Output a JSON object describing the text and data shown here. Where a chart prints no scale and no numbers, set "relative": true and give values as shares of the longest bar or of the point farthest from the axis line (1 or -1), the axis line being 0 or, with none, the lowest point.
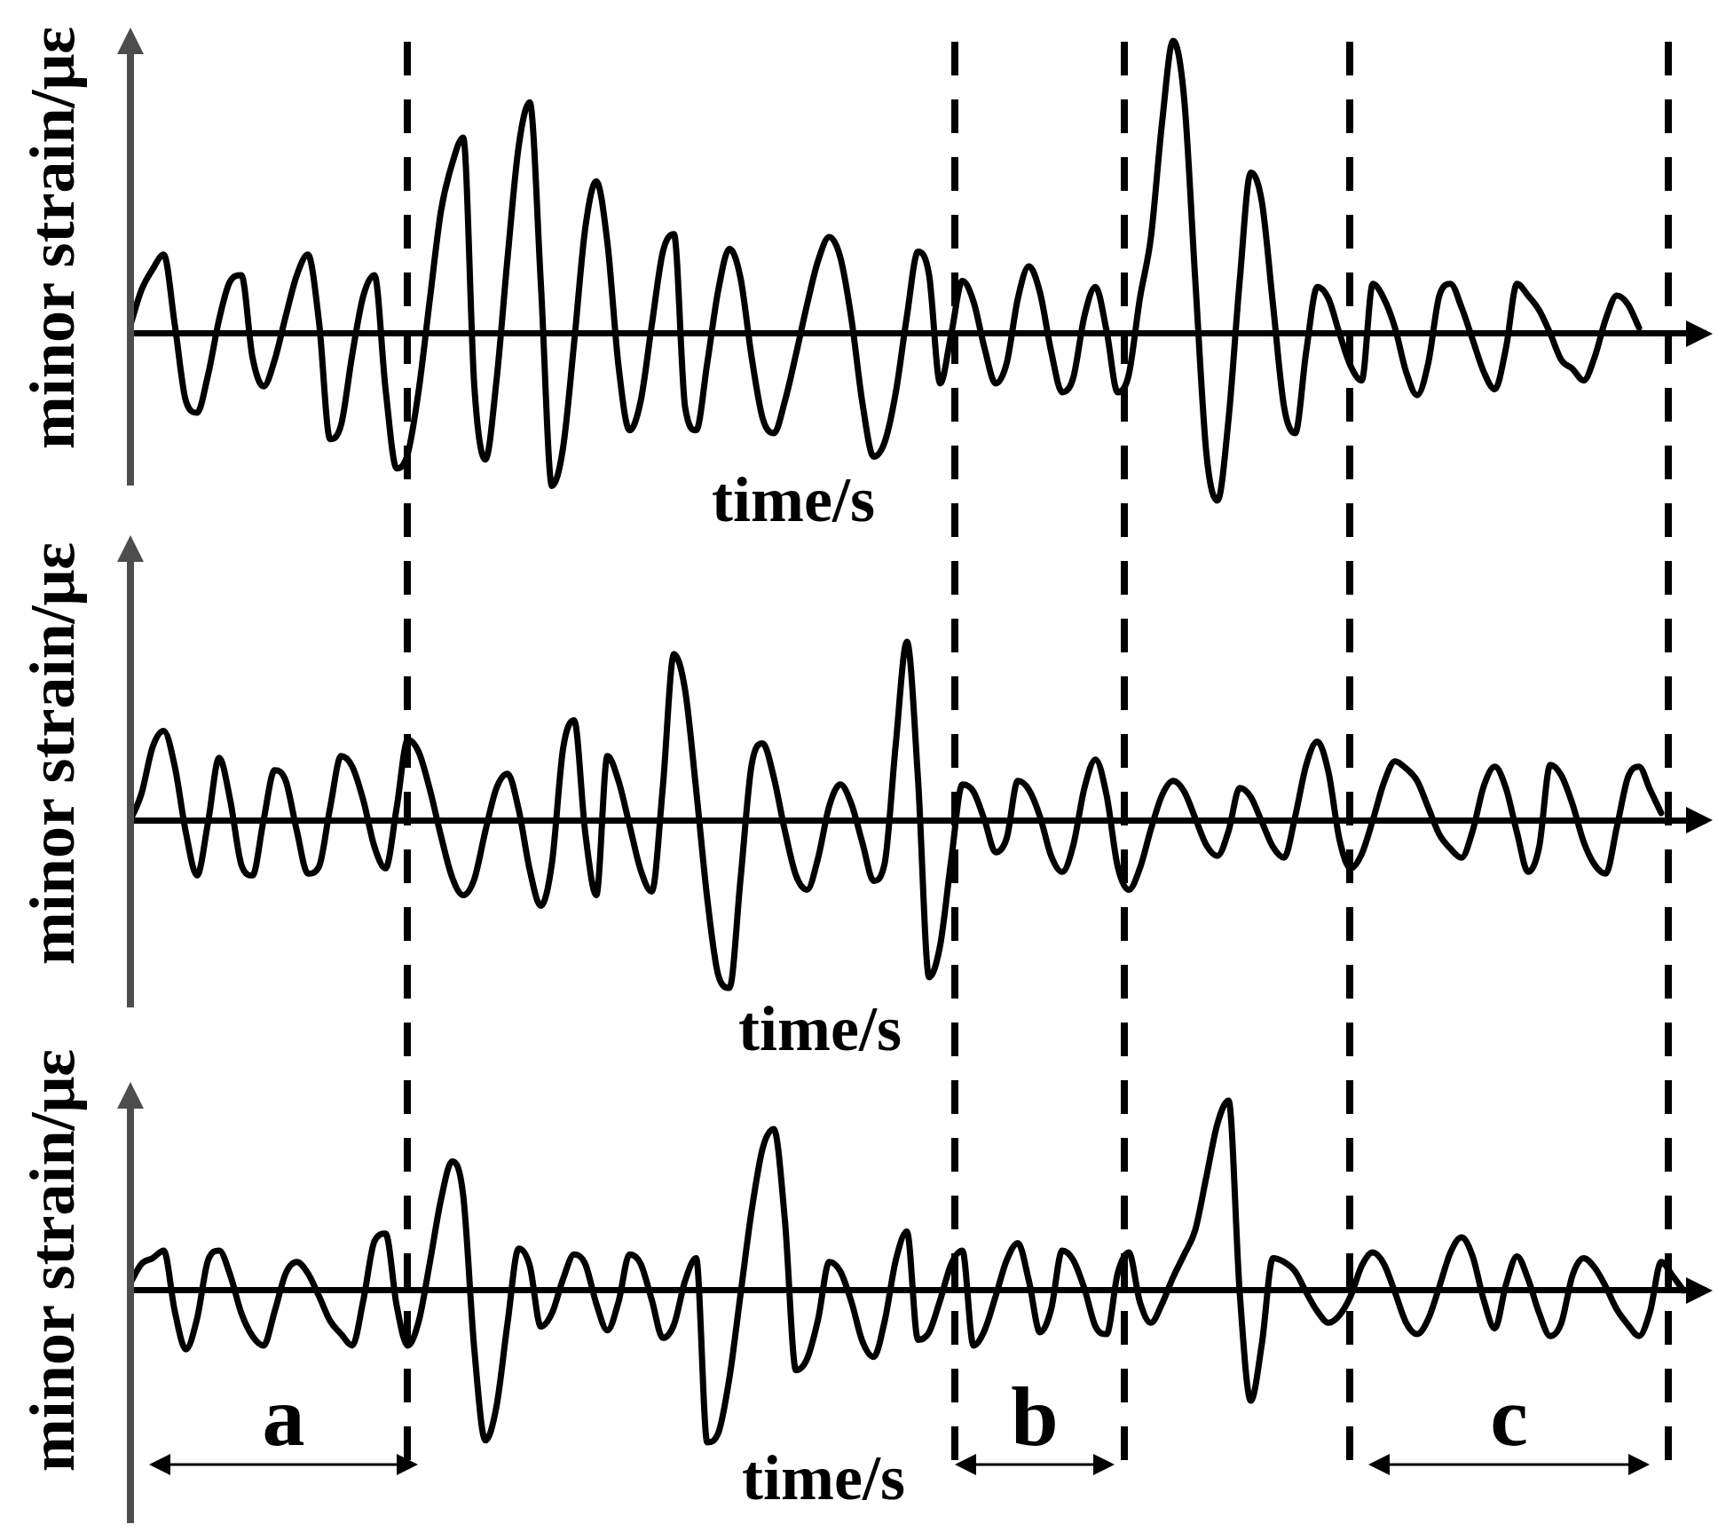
{
  "chart_data": [
    {
      "type": "line",
      "relative": true,
      "xlabel": "time/s",
      "ylabel": "minor strain/με",
      "categories": [
        null,
        null,
        null,
        null,
        null,
        null,
        null,
        null,
        null,
        null,
        null,
        null,
        null,
        null,
        null,
        null,
        null,
        null,
        null,
        null,
        null,
        null,
        null,
        null,
        null,
        null,
        null,
        null,
        null,
        null,
        null,
        null,
        null,
        null,
        null,
        null,
        null,
        null,
        null,
        null,
        null,
        null,
        null,
        null,
        null,
        null,
        null,
        null,
        null,
        null,
        null,
        null,
        null,
        null,
        null,
        null,
        null,
        null,
        null,
        null,
        null,
        null,
        null,
        null,
        null,
        null,
        null,
        null,
        null,
        null,
        null,
        null,
        null,
        null,
        null,
        null,
        null,
        null,
        null,
        null,
        null,
        null,
        null,
        null,
        null,
        null,
        null,
        null,
        null,
        null,
        null,
        null,
        null,
        null,
        null,
        null,
        null,
        null,
        null,
        null,
        null,
        null,
        null,
        null,
        null,
        null,
        null,
        null,
        null,
        null,
        null,
        null,
        null,
        null,
        null,
        null,
        null,
        null,
        null,
        null,
        null,
        null,
        null,
        null,
        null,
        null,
        null,
        null,
        null,
        null,
        null,
        null,
        null,
        null,
        null,
        null,
        null,
        null,
        null,
        null,
        null,
        null,
        null
      ],
      "series": [
        {
          "color": "#000000",
          "values": [
            0.03,
            0.15,
            0.22,
            0.27,
            0.03,
            -0.23,
            -0.27,
            -0.14,
            0.05,
            0.18,
            0.2,
            -0.08,
            -0.18,
            -0.09,
            0.06,
            0.2,
            0.27,
            0.04,
            -0.36,
            -0.31,
            -0.07,
            0.13,
            0.2,
            -0.19,
            -0.46,
            -0.41,
            -0.19,
            0.12,
            0.42,
            0.58,
            0.67,
            -0.18,
            -0.43,
            -0.16,
            0.26,
            0.64,
            0.79,
            0.17,
            -0.52,
            -0.39,
            -0.03,
            0.36,
            0.52,
            0.31,
            -0.11,
            -0.33,
            -0.23,
            0.03,
            0.28,
            0.34,
            -0.25,
            -0.33,
            -0.1,
            0.15,
            0.29,
            0.19,
            -0.08,
            -0.29,
            -0.34,
            -0.23,
            -0.07,
            0.1,
            0.25,
            0.33,
            0.26,
            0.05,
            -0.24,
            -0.42,
            -0.37,
            -0.2,
            0.06,
            0.28,
            0.2,
            -0.17,
            0.0,
            0.18,
            0.11,
            -0.05,
            -0.17,
            -0.1,
            0.12,
            0.23,
            0.14,
            -0.06,
            -0.2,
            -0.15,
            0.06,
            0.16,
            0.01,
            -0.2,
            -0.14,
            0.12,
            0.33,
            0.72,
            1,
            0.8,
            0.18,
            -0.41,
            -0.57,
            -0.29,
            0.18,
            0.55,
            0.45,
            0.1,
            -0.25,
            -0.34,
            -0.06,
            0.16,
            0.12,
            0.0,
            -0.11,
            -0.16,
            0.17,
            0.12,
            0.02,
            -0.13,
            -0.21,
            -0.1,
            0.13,
            0.17,
            0.09,
            -0.02,
            -0.13,
            -0.19,
            -0.05,
            0.17,
            0.13,
            0.08,
            0.0,
            -0.09,
            -0.12,
            -0.16,
            -0.08,
            0.05,
            0.13,
            0.1,
            0.02,
            null,
            null,
            null,
            null,
            null,
            null
          ]
        }
      ]
    },
    {
      "type": "line",
      "relative": true,
      "xlabel": "time/s",
      "ylabel": "minor strain/με",
      "categories": [
        null,
        null,
        null,
        null,
        null,
        null,
        null,
        null,
        null,
        null,
        null,
        null,
        null,
        null,
        null,
        null,
        null,
        null,
        null,
        null,
        null,
        null,
        null,
        null,
        null,
        null,
        null,
        null,
        null,
        null,
        null,
        null,
        null,
        null,
        null,
        null,
        null,
        null,
        null,
        null,
        null,
        null,
        null,
        null,
        null,
        null,
        null,
        null,
        null,
        null,
        null,
        null,
        null,
        null,
        null,
        null,
        null,
        null,
        null,
        null,
        null,
        null,
        null,
        null,
        null,
        null,
        null,
        null,
        null,
        null,
        null,
        null,
        null,
        null,
        null,
        null,
        null,
        null,
        null,
        null,
        null,
        null,
        null,
        null,
        null,
        null,
        null,
        null,
        null,
        null,
        null,
        null,
        null,
        null,
        null,
        null,
        null,
        null,
        null,
        null,
        null,
        null,
        null,
        null,
        null,
        null,
        null,
        null,
        null,
        null,
        null,
        null,
        null,
        null,
        null,
        null,
        null,
        null,
        null,
        null,
        null,
        null,
        null,
        null,
        null,
        null,
        null,
        null,
        null,
        null,
        null,
        null,
        null,
        null,
        null,
        null,
        null,
        null,
        null,
        null,
        null,
        null,
        null
      ],
      "series": [
        {
          "color": "#000000",
          "values": [
            0.0,
            0.15,
            0.41,
            0.5,
            0.3,
            -0.07,
            -0.31,
            -0.01,
            0.35,
            0.11,
            -0.25,
            -0.31,
            0.0,
            0.28,
            0.22,
            -0.06,
            -0.3,
            -0.26,
            0.07,
            0.36,
            0.3,
            0.11,
            -0.15,
            -0.27,
            0.07,
            0.45,
            0.38,
            0.17,
            -0.09,
            -0.32,
            -0.42,
            -0.33,
            -0.06,
            0.18,
            0.26,
            0.06,
            -0.28,
            -0.48,
            -0.24,
            0.4,
            0.56,
            -0.07,
            -0.42,
            0.36,
            0.22,
            -0.03,
            -0.28,
            -0.4,
            0.19,
            0.93,
            0.73,
            0.17,
            -0.44,
            -0.87,
            -0.94,
            -0.33,
            0.31,
            0.43,
            0.24,
            -0.06,
            -0.31,
            -0.39,
            -0.21,
            0.08,
            0.2,
            0.09,
            -0.13,
            -0.34,
            -0.24,
            0.43,
            1,
            0.23,
            -0.88,
            -0.7,
            -0.22,
            0.2,
            0.16,
            0.0,
            -0.18,
            -0.1,
            0.22,
            0.17,
            0.02,
            -0.2,
            -0.29,
            -0.14,
            0.18,
            0.34,
            0.14,
            -0.26,
            -0.39,
            -0.27,
            -0.05,
            0.14,
            0.22,
            0.16,
            0.01,
            -0.14,
            -0.2,
            -0.06,
            0.18,
            0.13,
            -0.01,
            -0.15,
            -0.21,
            0.02,
            0.31,
            0.44,
            0.27,
            -0.11,
            -0.27,
            -0.19,
            0.0,
            0.21,
            0.33,
            0.29,
            0.22,
            0.07,
            -0.08,
            -0.16,
            -0.21,
            -0.06,
            0.19,
            0.3,
            0.18,
            -0.07,
            -0.29,
            -0.15,
            0.31,
            0.25,
            0.09,
            -0.12,
            -0.25,
            -0.3,
            -0.04,
            0.24,
            0.3,
            0.17,
            0.04,
            null,
            null,
            null,
            null
          ]
        }
      ]
    },
    {
      "type": "line",
      "relative": true,
      "xlabel": "time/s",
      "ylabel": "minor strain/με",
      "annotations": [
        "a",
        "b",
        "c"
      ],
      "categories": [
        null,
        null,
        null,
        null,
        null,
        null,
        null,
        null,
        null,
        null,
        null,
        null,
        null,
        null,
        null,
        null,
        null,
        null,
        null,
        null,
        null,
        null,
        null,
        null,
        null,
        null,
        null,
        null,
        null,
        null,
        null,
        null,
        null,
        null,
        null,
        null,
        null,
        null,
        null,
        null,
        null,
        null,
        null,
        null,
        null,
        null,
        null,
        null,
        null,
        null,
        null,
        null,
        null,
        null,
        null,
        null,
        null,
        null,
        null,
        null,
        null,
        null,
        null,
        null,
        null,
        null,
        null,
        null,
        null,
        null,
        null,
        null,
        null,
        null,
        null,
        null,
        null,
        null,
        null,
        null,
        null,
        null,
        null,
        null,
        null,
        null,
        null,
        null,
        null,
        null,
        null,
        null,
        null,
        null,
        null,
        null,
        null,
        null,
        null,
        null,
        null,
        null,
        null,
        null,
        null,
        null,
        null,
        null,
        null,
        null,
        null,
        null,
        null,
        null,
        null,
        null,
        null,
        null,
        null,
        null,
        null,
        null,
        null,
        null,
        null,
        null,
        null,
        null,
        null,
        null,
        null,
        null,
        null,
        null,
        null,
        null,
        null,
        null,
        null,
        null,
        null,
        null,
        null
      ],
      "series": [
        {
          "color": "#000000",
          "values": [
            0.04,
            0.14,
            0.17,
            0.21,
            -0.11,
            -0.31,
            -0.15,
            0.16,
            0.21,
            0.08,
            -0.12,
            -0.24,
            -0.29,
            -0.11,
            0.09,
            0.15,
            0.09,
            -0.03,
            -0.16,
            -0.23,
            -0.29,
            -0.05,
            0.26,
            0.3,
            -0.08,
            -0.29,
            -0.16,
            0.15,
            0.48,
            0.68,
            0.5,
            -0.31,
            -0.79,
            -0.61,
            -0.17,
            0.22,
            0.13,
            -0.19,
            -0.12,
            0.06,
            0.19,
            0.14,
            -0.07,
            -0.21,
            -0.06,
            0.19,
            0.14,
            -0.05,
            -0.25,
            -0.18,
            0.05,
            0.17,
            -0.8,
            -0.75,
            -0.46,
            -0.02,
            0.42,
            0.75,
            0.85,
            0.37,
            -0.42,
            -0.36,
            -0.15,
            0.15,
            0.1,
            -0.06,
            -0.27,
            -0.35,
            -0.16,
            0.16,
            0.31,
            -0.26,
            -0.22,
            -0.05,
            0.14,
            0.21,
            -0.29,
            -0.21,
            -0.03,
            0.16,
            0.25,
            0.05,
            -0.22,
            -0.1,
            0.21,
            0.16,
            0.01,
            -0.19,
            -0.23,
            0.09,
            0.2,
            -0.06,
            -0.17,
            -0.07,
            0.07,
            0.19,
            0.32,
            0.6,
            0.88,
            1,
            -0.01,
            -0.58,
            -0.28,
            0.17,
            0.15,
            0.1,
            -0.01,
            -0.11,
            -0.17,
            -0.13,
            -0.03,
            0.13,
            0.2,
            0.14,
            -0.01,
            -0.17,
            -0.23,
            -0.15,
            0.02,
            0.2,
            0.28,
            0.18,
            -0.05,
            -0.2,
            0.03,
            0.18,
            0.06,
            -0.12,
            -0.24,
            -0.17,
            0.08,
            0.17,
            0.12,
            0.02,
            -0.1,
            -0.18,
            -0.24,
            -0.11,
            0.15,
            0.08,
            0,
            null,
            null
          ]
        }
      ]
    }
  ]
}
